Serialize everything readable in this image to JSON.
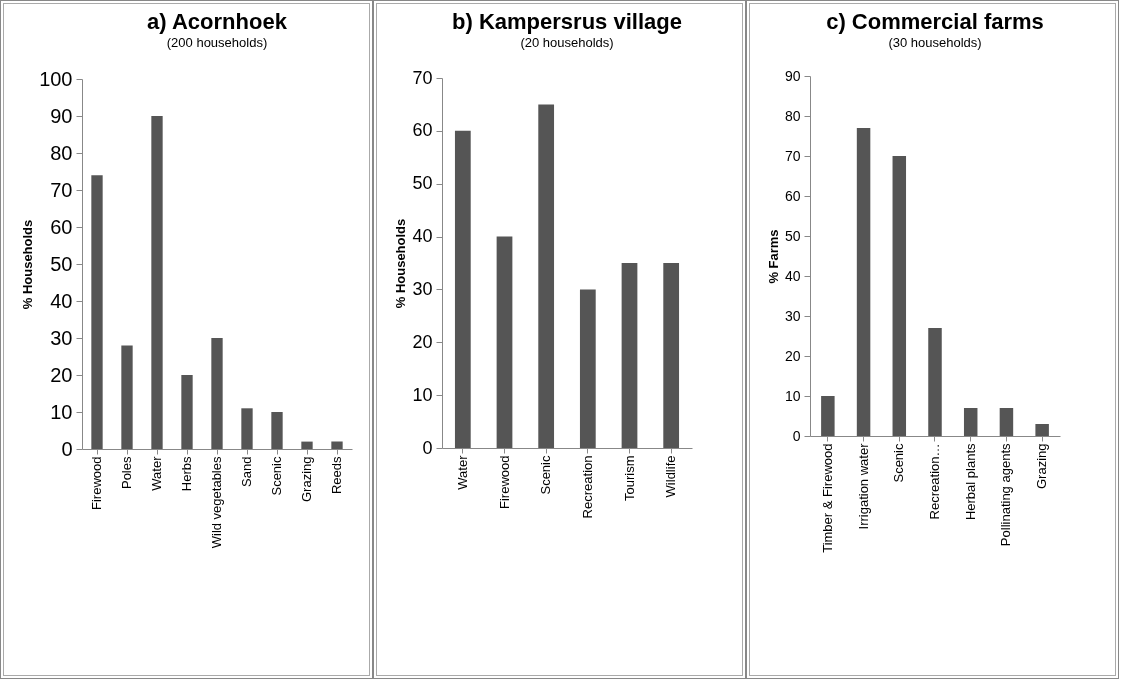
{
  "chart_data": [
    {
      "type": "bar",
      "title": "a) Acornhoek",
      "subtitle": "(200 households)",
      "ylabel": "% Households",
      "categories": [
        "Firewood",
        "Poles",
        "Water",
        "Herbs",
        "Wild vegetables",
        "Sand",
        "Scenic",
        "Grazing",
        "Reeds"
      ],
      "values": [
        74,
        28,
        90,
        20,
        30,
        11,
        10,
        2,
        2
      ],
      "color": "#555555",
      "ylim": [
        0,
        100
      ],
      "yticks": [
        0,
        10,
        20,
        30,
        40,
        50,
        60,
        70,
        80,
        90,
        100
      ],
      "grid": false
    },
    {
      "type": "bar",
      "title": "b)  Kampersrus village",
      "subtitle": "(20 households)",
      "ylabel": "% Households",
      "categories": [
        "Water",
        "Firewood",
        "Scenic",
        "Recreation",
        "Tourism",
        "Wildlife"
      ],
      "values": [
        60,
        40,
        65,
        30,
        35,
        35
      ],
      "color": "#555555",
      "ylim": [
        0,
        70
      ],
      "yticks": [
        0,
        10,
        20,
        30,
        40,
        50,
        60,
        70
      ],
      "grid": false
    },
    {
      "type": "bar",
      "title": "c)  Commercial farms",
      "subtitle": "(30 households)",
      "ylabel": "% Farms",
      "categories": [
        "Timber & Firewood",
        "Irrigation water",
        "Scenic",
        "Recreation…",
        "Herbal plants",
        "Pollinating agents",
        "Grazing"
      ],
      "values": [
        10,
        77,
        70,
        27,
        7,
        7,
        3
      ],
      "color": "#555555",
      "ylim": [
        0,
        90
      ],
      "yticks": [
        0,
        10,
        20,
        30,
        40,
        50,
        60,
        70,
        80,
        90
      ],
      "grid": false
    }
  ]
}
